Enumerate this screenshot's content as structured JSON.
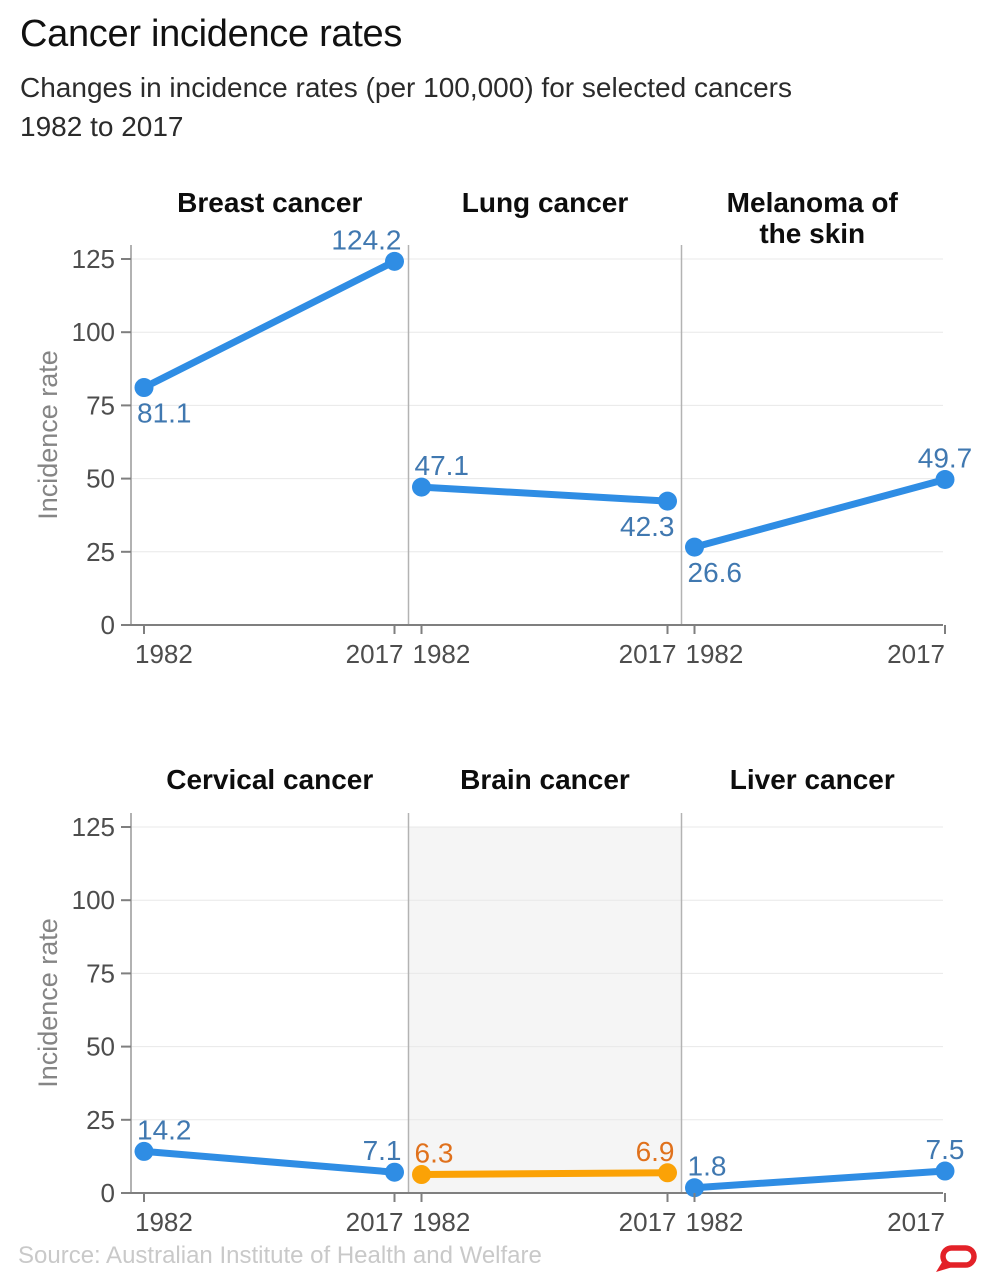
{
  "header": {
    "title": "Cancer incidence rates",
    "subtitle_lines": [
      "Changes in incidence rates (per 100,000) for selected cancers",
      "1982 to 2017"
    ]
  },
  "footer": {
    "source": "Source: Australian Institute of Health and Welfare",
    "logo_icon": "speech-bubble-logo"
  },
  "colors": {
    "line_blue": "#2f8de4",
    "label_blue": "#4078b0",
    "line_orange": "#fba206",
    "label_orange": "#e0711c",
    "highlight_bg": "#f5f5f5",
    "logo_red": "#e32128"
  },
  "chart_data": {
    "type": "line",
    "x_categories": [
      "1982",
      "2017"
    ],
    "ylabel": "Incidence rate",
    "yticks": [
      0,
      25,
      50,
      75,
      100,
      125
    ],
    "ylim": [
      0,
      130
    ],
    "grid": true,
    "layout_hint": "2 rows x 3 columns small multiples, shared y axis per row",
    "panels": [
      {
        "title_lines": [
          "Breast cancer"
        ],
        "row": 0,
        "col": 0,
        "values": [
          81.1,
          124.2
        ],
        "label_positions": [
          "below",
          "above"
        ],
        "color_key": "blue",
        "highlight": false
      },
      {
        "title_lines": [
          "Lung cancer"
        ],
        "row": 0,
        "col": 1,
        "values": [
          47.1,
          42.3
        ],
        "label_positions": [
          "above",
          "below"
        ],
        "color_key": "blue",
        "highlight": false
      },
      {
        "title_lines": [
          "Melanoma of",
          "the skin"
        ],
        "row": 0,
        "col": 2,
        "values": [
          26.6,
          49.7
        ],
        "label_positions": [
          "below",
          "above"
        ],
        "color_key": "blue",
        "highlight": false
      },
      {
        "title_lines": [
          "Cervical cancer"
        ],
        "row": 1,
        "col": 0,
        "values": [
          14.2,
          7.1
        ],
        "label_positions": [
          "above",
          "above"
        ],
        "color_key": "blue",
        "highlight": false
      },
      {
        "title_lines": [
          "Brain cancer"
        ],
        "row": 1,
        "col": 1,
        "values": [
          6.3,
          6.9
        ],
        "label_positions": [
          "above",
          "above"
        ],
        "color_key": "orange",
        "highlight": true
      },
      {
        "title_lines": [
          "Liver cancer"
        ],
        "row": 1,
        "col": 2,
        "values": [
          1.8,
          7.5
        ],
        "label_positions": [
          "above",
          "above"
        ],
        "color_key": "blue",
        "highlight": false
      }
    ]
  }
}
